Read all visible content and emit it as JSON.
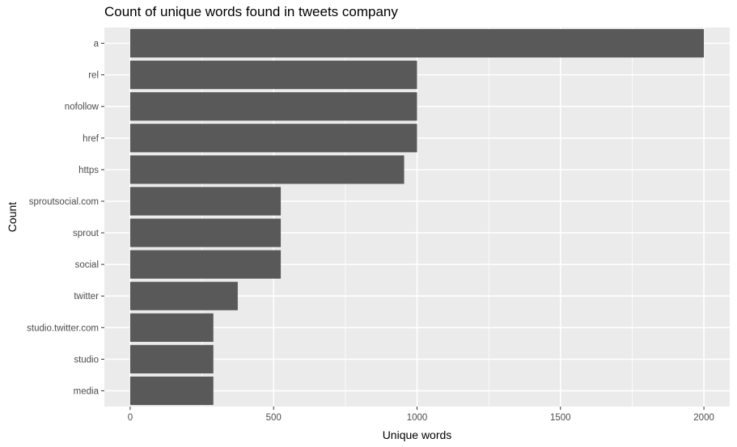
{
  "chart_data": {
    "type": "bar",
    "orientation": "horizontal",
    "title": "Count of unique words found in tweets company",
    "xlabel": "Unique words",
    "ylabel": "Count",
    "categories": [
      "a",
      "rel",
      "nofollow",
      "href",
      "https",
      "sproutsocial.com",
      "sprout",
      "social",
      "twitter",
      "studio.twitter.com",
      "studio",
      "media"
    ],
    "values": [
      2000,
      1000,
      1000,
      1000,
      955,
      525,
      525,
      525,
      375,
      290,
      290,
      290
    ],
    "xlim": [
      -90,
      2090
    ],
    "xticks": [
      0,
      500,
      1000,
      1500,
      2000
    ],
    "xtick_labels": [
      "0",
      "500",
      "1000",
      "1500",
      "2000"
    ],
    "grid": true,
    "colors": {
      "bar": "#595959",
      "panel": "#ebebeb",
      "grid": "#ffffff"
    }
  }
}
